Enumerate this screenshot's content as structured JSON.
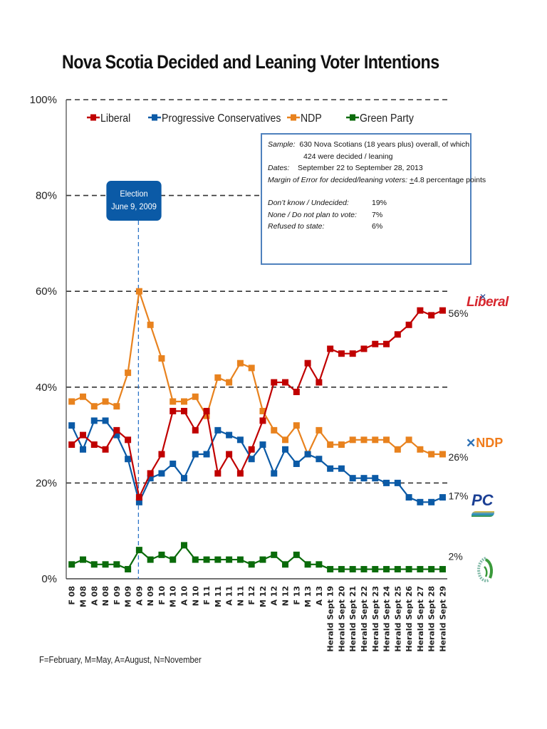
{
  "title": "Nova Scotia Decided and Leaning Voter Intentions",
  "info_box": {
    "sample_label": "Sample:",
    "sample_line1": "630 Nova Scotians (18 years plus) overall, of which",
    "sample_line2": "424 were decided / leaning",
    "dates_label": "Dates:",
    "dates_value": "September 22 to September 28, 2013",
    "moe_label": "Margin of Error for decided/leaning voters:",
    "moe_value_sign": "+",
    "moe_value": "4.8 percentage points",
    "rows": [
      {
        "label": "Don’t know / Undecided:",
        "value": "19%"
      },
      {
        "label": "None / Do not plan to vote:",
        "value": "7%"
      },
      {
        "label": "Refused to state:",
        "value": "6%"
      }
    ]
  },
  "election_callout": {
    "line1": "Election",
    "line2": "June 9, 2009",
    "category": "A 09"
  },
  "footnote": "F=February, M=May, A=August, N=November",
  "logos": {
    "liberal": "Liberal",
    "ndp": "NDP",
    "pc": "PC",
    "liberal_icon": "liberal-party-logo",
    "ndp_icon": "ndp-party-logo",
    "pc_icon": "pc-party-logo",
    "green_icon": "green-party-logo"
  },
  "chart_data": {
    "type": "line",
    "title": "Nova Scotia Decided and Leaning Voter Intentions",
    "xlabel": "",
    "ylabel": "",
    "ylim": [
      0,
      100
    ],
    "yticks": [
      0,
      20,
      40,
      60,
      80,
      100
    ],
    "ytick_labels": [
      "0%",
      "20%",
      "40%",
      "60%",
      "80%",
      "100%"
    ],
    "grid": "horizontal dashed",
    "legend": "top-left",
    "categories": [
      "F 08",
      "M 08",
      "A 08",
      "N 08",
      "F 09",
      "M 09",
      "A 09",
      "N 09",
      "F 10",
      "M 10",
      "A 10",
      "N 10",
      "F 11",
      "M 11",
      "A 11",
      "N 11",
      "F 12",
      "M 12",
      "A 12",
      "N 12",
      "F 13",
      "M 13",
      "A 13",
      "Herald Sept 19",
      "Herald Sept 20",
      "Herald Sept 21",
      "Herald Sept 22",
      "Herald Sept 23",
      "Herald Sept 24",
      "Herald Sept 25",
      "Herald Sept 26",
      "Herald Sept 27",
      "Herald Sept 28",
      "Herald Sept 29"
    ],
    "series": [
      {
        "name": "Liberal",
        "color": "#c00000",
        "end_label": "56%",
        "values": [
          28,
          30,
          28,
          27,
          31,
          29,
          17,
          22,
          26,
          35,
          35,
          31,
          35,
          22,
          26,
          22,
          27,
          33,
          41,
          41,
          39,
          45,
          41,
          48,
          47,
          47,
          48,
          49,
          49,
          51,
          53,
          56,
          55,
          56
        ]
      },
      {
        "name": "Progressive Conservatives",
        "color": "#0b5aa6",
        "end_label": "17%",
        "values": [
          32,
          27,
          33,
          33,
          30,
          25,
          16,
          21,
          22,
          24,
          21,
          26,
          26,
          31,
          30,
          29,
          25,
          28,
          22,
          27,
          24,
          26,
          25,
          23,
          23,
          21,
          21,
          21,
          20,
          20,
          17,
          16,
          16,
          17
        ]
      },
      {
        "name": "NDP",
        "color": "#e8821e",
        "end_label": "26%",
        "values": [
          37,
          38,
          36,
          37,
          36,
          43,
          60,
          53,
          46,
          37,
          37,
          38,
          34,
          42,
          41,
          45,
          44,
          35,
          31,
          29,
          32,
          26,
          31,
          28,
          28,
          29,
          29,
          29,
          29,
          27,
          29,
          27,
          26,
          26
        ]
      },
      {
        "name": "Green Party",
        "color": "#0a6b0a",
        "end_label": "2%",
        "values": [
          3,
          4,
          3,
          3,
          3,
          2,
          6,
          4,
          5,
          4,
          7,
          4,
          4,
          4,
          4,
          4,
          3,
          4,
          5,
          3,
          5,
          3,
          3,
          2,
          2,
          2,
          2,
          2,
          2,
          2,
          2,
          2,
          2,
          2
        ]
      }
    ]
  }
}
